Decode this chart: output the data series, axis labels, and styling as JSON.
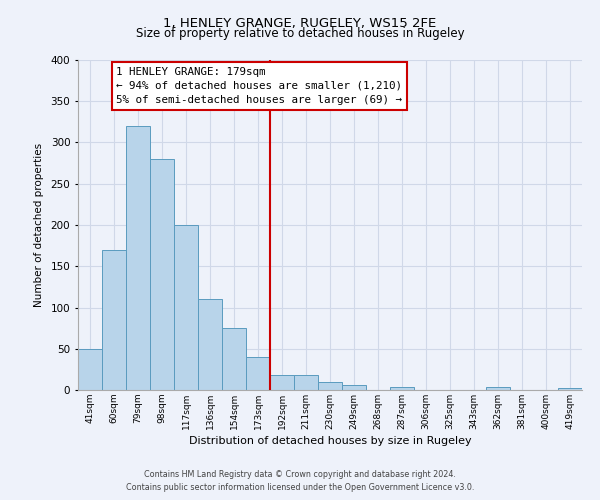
{
  "title": "1, HENLEY GRANGE, RUGELEY, WS15 2FE",
  "subtitle": "Size of property relative to detached houses in Rugeley",
  "xlabel": "Distribution of detached houses by size in Rugeley",
  "ylabel": "Number of detached properties",
  "bin_labels": [
    "41sqm",
    "60sqm",
    "79sqm",
    "98sqm",
    "117sqm",
    "136sqm",
    "154sqm",
    "173sqm",
    "192sqm",
    "211sqm",
    "230sqm",
    "249sqm",
    "268sqm",
    "287sqm",
    "306sqm",
    "325sqm",
    "343sqm",
    "362sqm",
    "381sqm",
    "400sqm",
    "419sqm"
  ],
  "bar_values": [
    50,
    170,
    320,
    280,
    200,
    110,
    75,
    40,
    18,
    18,
    10,
    6,
    0,
    4,
    0,
    0,
    0,
    4,
    0,
    0,
    3
  ],
  "bar_color": "#b8d4ea",
  "bar_edge_color": "#5a9bbf",
  "vline_x": 7.5,
  "vline_color": "#cc0000",
  "annotation_title": "1 HENLEY GRANGE: 179sqm",
  "annotation_line1": "← 94% of detached houses are smaller (1,210)",
  "annotation_line2": "5% of semi-detached houses are larger (69) →",
  "annotation_box_color": "#ffffff",
  "annotation_border_color": "#cc0000",
  "ylim": [
    0,
    400
  ],
  "yticks": [
    0,
    50,
    100,
    150,
    200,
    250,
    300,
    350,
    400
  ],
  "footer_line1": "Contains HM Land Registry data © Crown copyright and database right 2024.",
  "footer_line2": "Contains public sector information licensed under the Open Government Licence v3.0.",
  "bg_color": "#eef2fa",
  "plot_bg_color": "#eef2fa",
  "grid_color": "#d0d8e8",
  "title_fontsize": 9.5,
  "subtitle_fontsize": 8.5
}
